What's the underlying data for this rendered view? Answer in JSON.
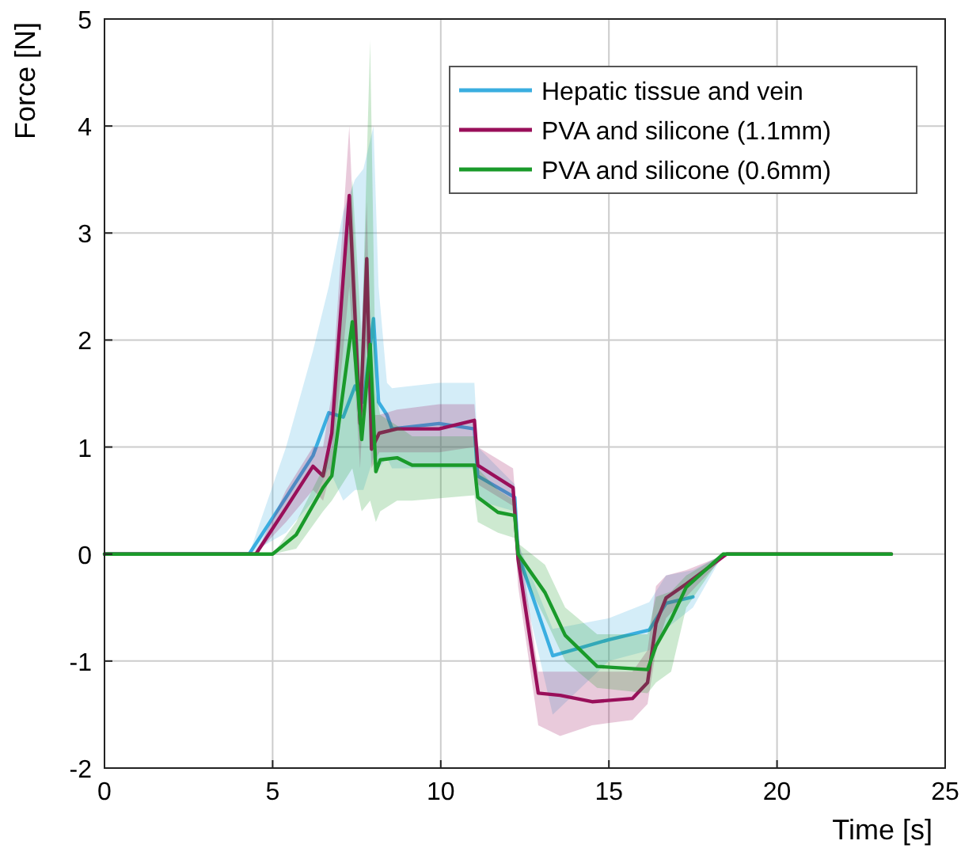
{
  "chart_data": {
    "type": "line",
    "xlabel": "Time [s]",
    "ylabel": "Force [N]",
    "xlim": [
      0,
      25
    ],
    "ylim": [
      -2,
      5
    ],
    "xticks": [
      0,
      5,
      10,
      15,
      20,
      25
    ],
    "yticks": [
      -2,
      -1,
      0,
      1,
      2,
      3,
      4,
      5
    ],
    "grid": true,
    "legend": "top right",
    "marker": "none",
    "line_style": "solid",
    "series": [
      {
        "name": "Hepatic tissue and vein",
        "color": "#3aaee0",
        "x": [
          0,
          4.3,
          5.4,
          6.2,
          6.67,
          7.1,
          7.45,
          7.7,
          8.0,
          8.15,
          8.4,
          8.55,
          9.95,
          11.0,
          11.1,
          12.2,
          12.3,
          13.33,
          15.0,
          16.2,
          16.7,
          17.5,
          18.4,
          23.4
        ],
        "values": [
          0,
          0,
          0.53,
          0.92,
          1.32,
          1.28,
          1.57,
          1.42,
          2.2,
          1.42,
          1.3,
          1.17,
          1.22,
          1.17,
          0.73,
          0.53,
          0,
          -0.95,
          -0.8,
          -0.71,
          -0.46,
          -0.4,
          null,
          null
        ],
        "upper": [
          0,
          0,
          1.0,
          1.9,
          2.5,
          3.2,
          3.5,
          3.6,
          4.0,
          2.5,
          1.6,
          1.55,
          1.6,
          1.6,
          1.0,
          0.65,
          0.1,
          -0.7,
          -0.6,
          -0.45,
          -0.2,
          -0.15,
          0,
          0
        ],
        "lower": [
          0,
          0,
          0.2,
          0.5,
          0.8,
          0.5,
          0.6,
          0.6,
          0.9,
          0.8,
          0.9,
          0.8,
          0.8,
          0.8,
          0.5,
          0.4,
          -0.1,
          -1.5,
          -1.0,
          -0.9,
          -0.7,
          -0.5,
          0,
          0
        ]
      },
      {
        "name": "PVA and silicone (1.1mm)",
        "color": "#990f5a",
        "x": [
          0,
          4.5,
          5.4,
          6.2,
          6.5,
          6.76,
          7.28,
          7.6,
          7.8,
          7.94,
          8.17,
          8.7,
          9.95,
          11.0,
          11.1,
          12.15,
          12.3,
          12.9,
          13.55,
          14.5,
          15.7,
          16.15,
          16.4,
          16.7,
          17.3,
          18.5,
          23.4
        ],
        "values": [
          0,
          0,
          0.43,
          0.82,
          0.73,
          1.13,
          3.35,
          1.22,
          2.76,
          0.98,
          1.13,
          1.17,
          1.17,
          1.25,
          0.83,
          0.62,
          -0.05,
          -1.3,
          -1.32,
          -1.38,
          -1.35,
          -1.2,
          -0.65,
          -0.41,
          -0.28,
          0,
          0
        ],
        "upper": [
          0,
          0,
          0.6,
          1.0,
          1.0,
          1.5,
          4.0,
          1.6,
          3.3,
          1.3,
          1.3,
          1.35,
          1.4,
          1.4,
          1.0,
          0.8,
          0.2,
          -1.1,
          -1.1,
          -1.1,
          -1.1,
          -0.9,
          -0.3,
          -0.2,
          -0.15,
          0,
          0
        ],
        "lower": [
          0,
          0,
          0.3,
          0.6,
          0.5,
          0.8,
          2.5,
          0.8,
          2.0,
          0.8,
          0.95,
          0.95,
          0.95,
          1.0,
          0.65,
          0.45,
          -0.3,
          -1.6,
          -1.7,
          -1.6,
          -1.55,
          -1.4,
          -0.9,
          -0.6,
          -0.4,
          0,
          0
        ]
      },
      {
        "name": "PVA and silicone (0.6mm)",
        "color": "#1a9a2a",
        "x": [
          0,
          5.0,
          5.7,
          6.5,
          6.76,
          7.37,
          7.65,
          7.9,
          8.07,
          8.2,
          8.7,
          9.15,
          11.0,
          11.1,
          11.7,
          12.2,
          12.3,
          13.1,
          13.7,
          14.65,
          16.15,
          16.4,
          16.85,
          17.3,
          18.4,
          23.4
        ],
        "values": [
          0,
          0,
          0.18,
          0.62,
          0.73,
          2.17,
          1.07,
          1.96,
          0.77,
          0.88,
          0.9,
          0.83,
          0.83,
          0.53,
          0.39,
          0.36,
          0,
          -0.36,
          -0.76,
          -1.05,
          -1.08,
          -0.86,
          -0.61,
          -0.31,
          0,
          0
        ],
        "upper": [
          0,
          0,
          0.3,
          0.8,
          1.0,
          3.5,
          2.0,
          4.8,
          1.5,
          1.3,
          1.2,
          1.1,
          1.1,
          0.8,
          0.6,
          0.5,
          0.1,
          -0.1,
          -0.5,
          -0.75,
          -0.75,
          -0.4,
          -0.35,
          -0.2,
          0,
          0
        ],
        "lower": [
          0,
          0,
          0.05,
          0.4,
          0.5,
          0.8,
          0.4,
          0.5,
          0.3,
          0.4,
          0.5,
          0.5,
          0.55,
          0.3,
          0.2,
          0.15,
          -0.1,
          -0.6,
          -1.0,
          -1.25,
          -1.3,
          -1.2,
          -1.1,
          -0.5,
          0,
          0
        ]
      }
    ]
  }
}
